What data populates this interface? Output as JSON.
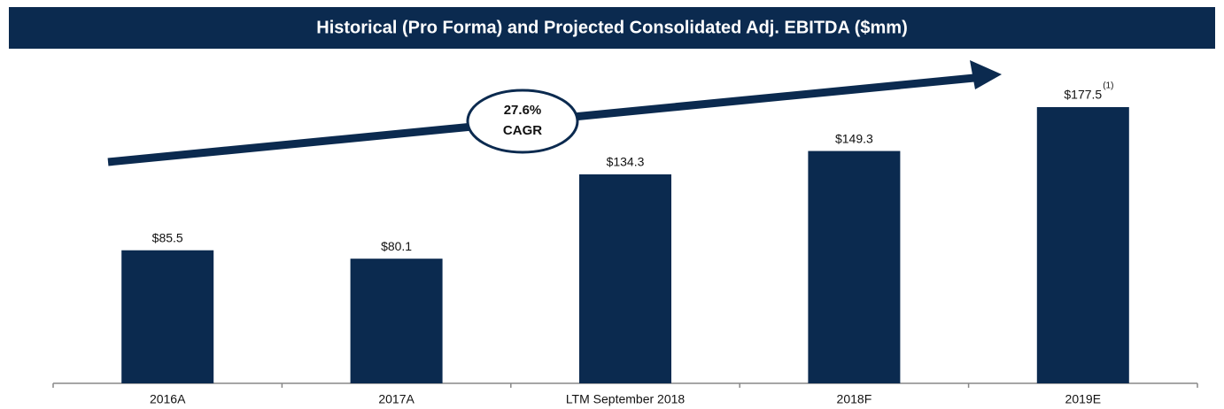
{
  "chart_data": {
    "type": "bar",
    "title": "Historical (Pro Forma) and Projected Consolidated Adj. EBITDA ($mm)",
    "categories": [
      "2016A",
      "2017A",
      "LTM September 2018",
      "2018F",
      "2019E"
    ],
    "values": [
      85.5,
      80.1,
      134.3,
      149.3,
      177.5
    ],
    "value_labels": [
      "$85.5",
      "$80.1",
      "$134.3",
      "$149.3",
      "$177.5"
    ],
    "color": "#0b2a4f",
    "annotation": [
      "27.6%",
      "CAGR"
    ],
    "footnote": "(1)"
  }
}
